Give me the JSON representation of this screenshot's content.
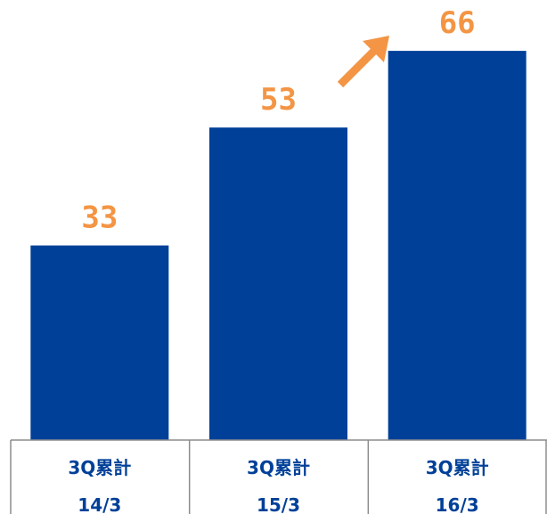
{
  "colors": {
    "bar": "#004098",
    "value_label": "#F39544",
    "arrow": "#F39544",
    "category_text": "#004098",
    "table_border": "#8C8C8C"
  },
  "chart_data": {
    "type": "bar",
    "categories": [
      {
        "line1": "3Q累計",
        "line2": "14/3"
      },
      {
        "line1": "3Q累計",
        "line2": "15/3"
      },
      {
        "line1": "3Q累計",
        "line2": "16/3"
      }
    ],
    "values": [
      33,
      53,
      66
    ],
    "value_labels": [
      "33",
      "53",
      "66"
    ],
    "ylim": [
      0,
      71
    ],
    "grid": false,
    "legend": "none",
    "annotations": [
      {
        "type": "arrow",
        "direction": "up-right",
        "near_category_index": 2
      }
    ]
  }
}
